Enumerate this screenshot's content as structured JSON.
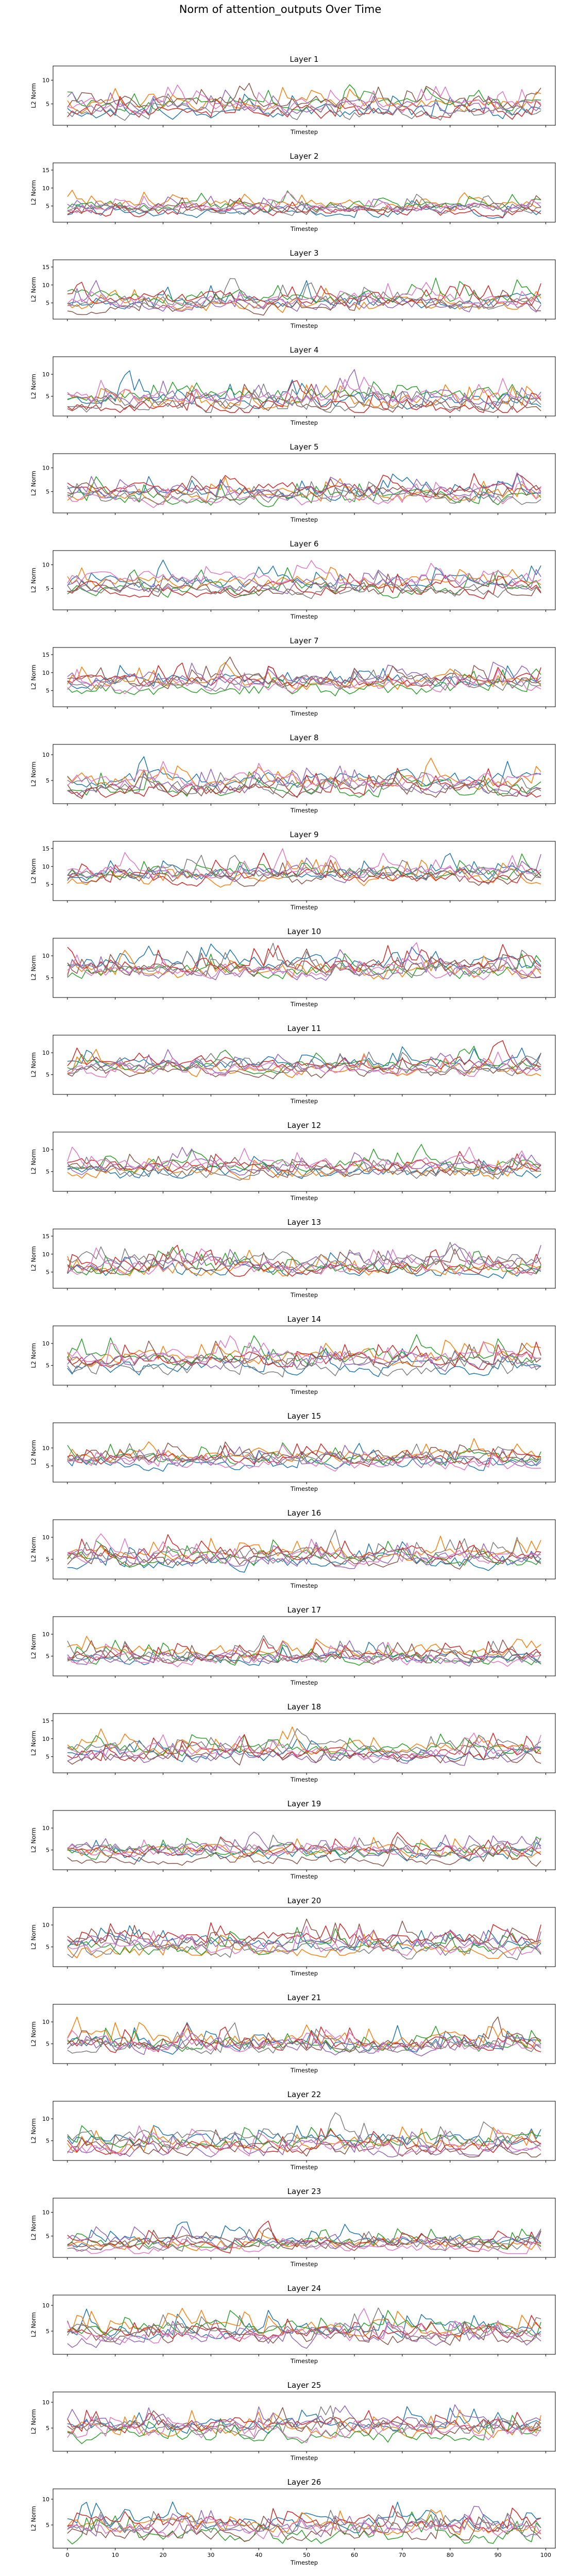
{
  "figure": {
    "title": "Norm of attention_outputs Over Time"
  },
  "palette": [
    "#1f77b4",
    "#ff7f0e",
    "#2ca02c",
    "#d62728",
    "#9467bd",
    "#8c564b",
    "#e377c2",
    "#7f7f7f"
  ],
  "chart_data": {
    "type": "line",
    "shared_x_axis": true,
    "x_range": [
      0,
      99
    ],
    "xlim": [
      -3,
      102
    ],
    "x_ticks": [
      0,
      10,
      20,
      30,
      40,
      50,
      60,
      70,
      80,
      90,
      100
    ],
    "xlabel": "Timestep",
    "ylabel": "L2 Norm",
    "series_per_panel": 8,
    "panels": [
      {
        "title": "Layer 1",
        "yticks": [
          5,
          10
        ],
        "ylim": [
          0.5,
          13
        ],
        "base": 4,
        "amp": 3.0,
        "peak": 11.5
      },
      {
        "title": "Layer 2",
        "yticks": [
          5,
          10,
          15
        ],
        "ylim": [
          0.5,
          17
        ],
        "base": 4,
        "amp": 3.0,
        "peak": 16.2
      },
      {
        "title": "Layer 3",
        "yticks": [
          5,
          10,
          15
        ],
        "ylim": [
          0.5,
          17
        ],
        "base": 5.5,
        "amp": 4.0,
        "peak": 15.5
      },
      {
        "title": "Layer 4",
        "yticks": [
          5,
          10
        ],
        "ylim": [
          0.5,
          14
        ],
        "base": 4,
        "amp": 3.5,
        "peak": 13.0
      },
      {
        "title": "Layer 5",
        "yticks": [
          5,
          10
        ],
        "ylim": [
          0.5,
          13
        ],
        "base": 4.5,
        "amp": 3.0,
        "peak": 12.0
      },
      {
        "title": "Layer 6",
        "yticks": [
          5,
          10
        ],
        "ylim": [
          0.5,
          13
        ],
        "base": 6,
        "amp": 3.0,
        "peak": 11.0
      },
      {
        "title": "Layer 7",
        "yticks": [
          5,
          10,
          15
        ],
        "ylim": [
          0.5,
          17
        ],
        "base": 7,
        "amp": 4.0,
        "peak": 16.0
      },
      {
        "title": "Layer 8",
        "yticks": [
          5,
          10
        ],
        "ylim": [
          0.5,
          12
        ],
        "base": 4.5,
        "amp": 3.0,
        "peak": 10.5
      },
      {
        "title": "Layer 9",
        "yticks": [
          5,
          10,
          15
        ],
        "ylim": [
          0.5,
          17
        ],
        "base": 7,
        "amp": 4.0,
        "peak": 15.5
      },
      {
        "title": "Layer 10",
        "yticks": [
          5,
          10
        ],
        "ylim": [
          0.5,
          14
        ],
        "base": 7,
        "amp": 3.5,
        "peak": 13.0
      },
      {
        "title": "Layer 11",
        "yticks": [
          5,
          10
        ],
        "ylim": [
          0.5,
          14
        ],
        "base": 6.5,
        "amp": 3.0,
        "peak": 13.0
      },
      {
        "title": "Layer 12",
        "yticks": [
          5,
          10
        ],
        "ylim": [
          0.5,
          14
        ],
        "base": 6,
        "amp": 3.0,
        "peak": 12.5
      },
      {
        "title": "Layer 13",
        "yticks": [
          5,
          10,
          15
        ],
        "ylim": [
          0.5,
          17
        ],
        "base": 7,
        "amp": 4.0,
        "peak": 15.5
      },
      {
        "title": "Layer 14",
        "yticks": [
          5,
          10
        ],
        "ylim": [
          0.5,
          14
        ],
        "base": 5.5,
        "amp": 3.5,
        "peak": 12.5
      },
      {
        "title": "Layer 15",
        "yticks": [
          5,
          10
        ],
        "ylim": [
          0.5,
          17
        ],
        "base": 6.5,
        "amp": 3.5,
        "peak": 15.5
      },
      {
        "title": "Layer 16",
        "yticks": [
          5,
          10
        ],
        "ylim": [
          0.5,
          14
        ],
        "base": 5,
        "amp": 3.5,
        "peak": 12.5
      },
      {
        "title": "Layer 17",
        "yticks": [
          5,
          10
        ],
        "ylim": [
          0.5,
          14
        ],
        "base": 5,
        "amp": 3.0,
        "peak": 13.0
      },
      {
        "title": "Layer 18",
        "yticks": [
          5,
          10,
          15
        ],
        "ylim": [
          0.5,
          17
        ],
        "base": 6,
        "amp": 4.0,
        "peak": 15.0
      },
      {
        "title": "Layer 19",
        "yticks": [
          5,
          10
        ],
        "ylim": [
          0.5,
          14
        ],
        "base": 4,
        "amp": 3.0,
        "peak": 13.0
      },
      {
        "title": "Layer 20",
        "yticks": [
          5,
          10
        ],
        "ylim": [
          0.5,
          14
        ],
        "base": 5.5,
        "amp": 3.5,
        "peak": 13.0
      },
      {
        "title": "Layer 21",
        "yticks": [
          5,
          10
        ],
        "ylim": [
          0.5,
          14
        ],
        "base": 4.5,
        "amp": 3.5,
        "peak": 12.5
      },
      {
        "title": "Layer 22",
        "yticks": [
          5,
          10
        ],
        "ylim": [
          0.5,
          14
        ],
        "base": 4.5,
        "amp": 3.5,
        "peak": 12.5
      },
      {
        "title": "Layer 23",
        "yticks": [
          5,
          10
        ],
        "ylim": [
          0.5,
          13
        ],
        "base": 3.5,
        "amp": 2.5,
        "peak": 10.5
      },
      {
        "title": "Layer 24",
        "yticks": [
          5,
          10
        ],
        "ylim": [
          0.5,
          12
        ],
        "base": 4.5,
        "amp": 3.0,
        "peak": 10.5
      },
      {
        "title": "Layer 25",
        "yticks": [
          5,
          10
        ],
        "ylim": [
          0.5,
          12
        ],
        "base": 4.5,
        "amp": 3.0,
        "peak": 10.5
      },
      {
        "title": "Layer 26",
        "yticks": [
          5,
          10
        ],
        "ylim": [
          0.5,
          12
        ],
        "base": 4,
        "amp": 3.0,
        "peak": 11.5
      }
    ]
  }
}
